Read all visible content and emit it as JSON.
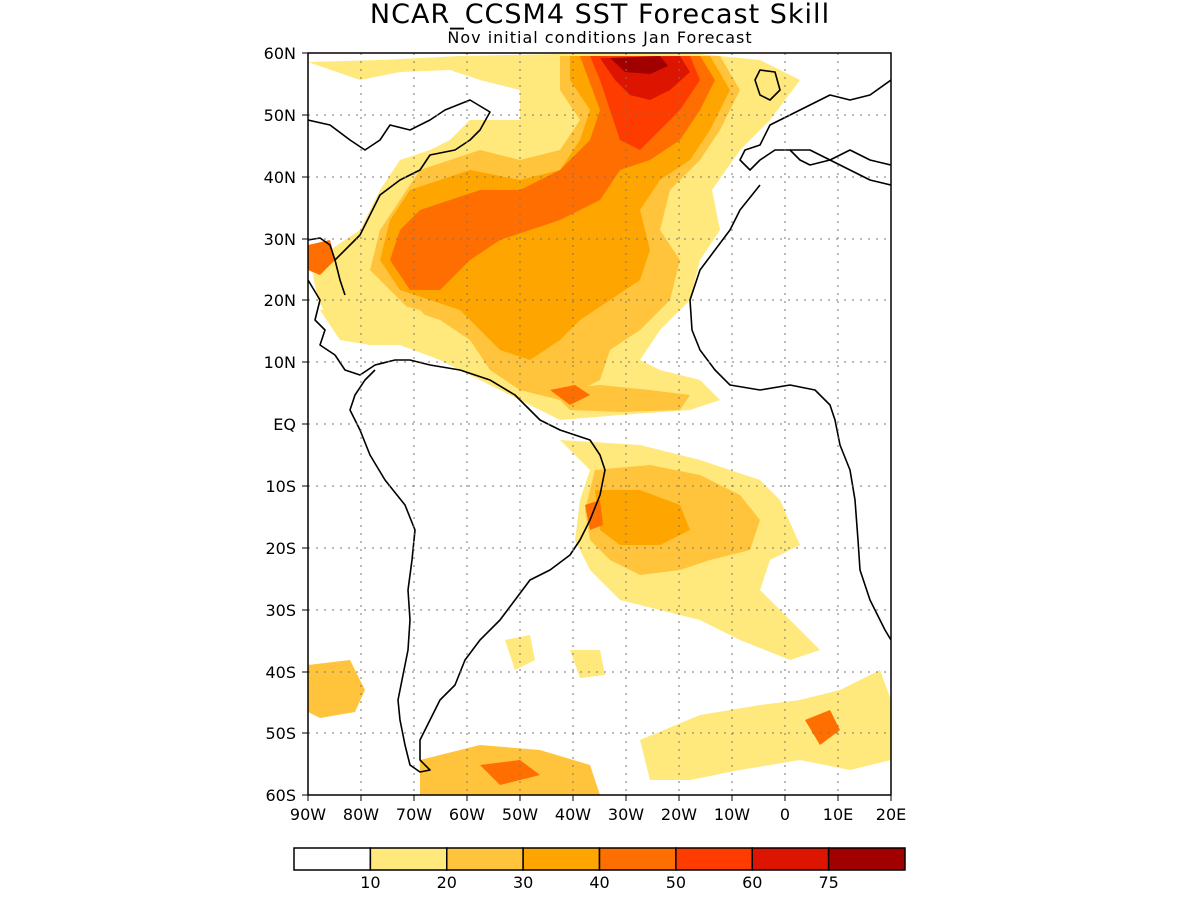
{
  "title": "NCAR_CCSM4 SST Forecast Skill",
  "subtitle": "Nov initial conditions  Jan Forecast",
  "map": {
    "lon_range": [
      -90,
      20
    ],
    "lat_range": [
      -60,
      60
    ],
    "lat_labels": [
      "60N",
      "50N",
      "40N",
      "30N",
      "20N",
      "10N",
      "EQ",
      "10S",
      "20S",
      "30S",
      "40S",
      "50S",
      "60S"
    ],
    "lon_labels": [
      "90W",
      "80W",
      "70W",
      "60W",
      "50W",
      "40W",
      "30W",
      "20W",
      "10W",
      "0",
      "10E",
      "20E"
    ],
    "gridlines": "dotted"
  },
  "colorbar": {
    "colors": [
      "#ffffff",
      "#ffe87c",
      "#ffc43c",
      "#ffa500",
      "#ff6e00",
      "#ff3c00",
      "#dc1400",
      "#a00000"
    ],
    "labels": [
      "10",
      "20",
      "30",
      "40",
      "50",
      "60",
      "75"
    ]
  }
}
